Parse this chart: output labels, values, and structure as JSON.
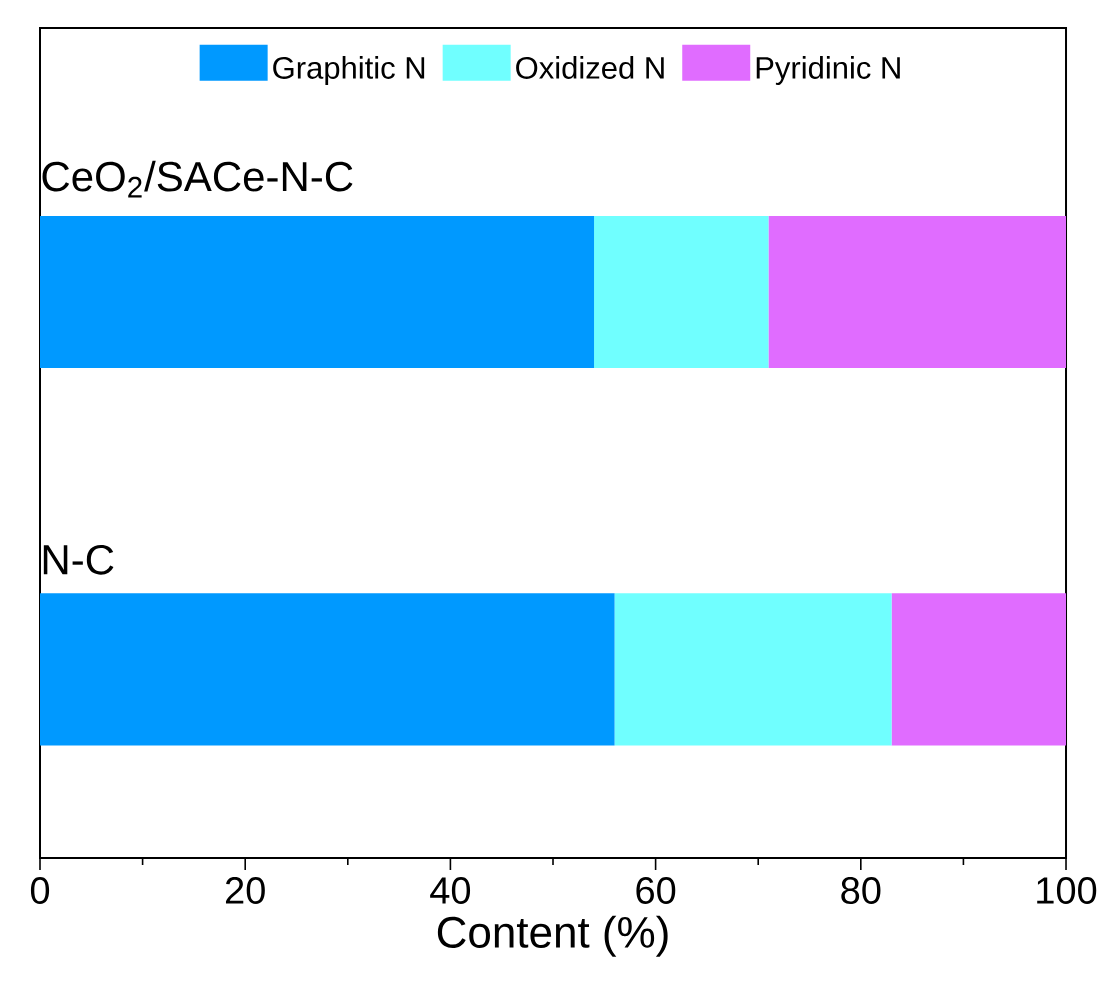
{
  "chart_data": {
    "type": "bar",
    "orientation": "horizontal",
    "stacked": true,
    "xlabel": "Content (%)",
    "categories": [
      "CeO$_{2}$/SACe-N-C",
      "N-C"
    ],
    "series": [
      {
        "name": "Graphitic N",
        "color": "#0099ff",
        "values": [
          54,
          56
        ]
      },
      {
        "name": "Oxidized N",
        "color": "#70ffff",
        "values": [
          17,
          27
        ]
      },
      {
        "name": "Pyridinic N",
        "color": "#e06cff",
        "values": [
          29,
          17
        ]
      }
    ],
    "xlim": [
      0,
      100
    ],
    "xticks": [
      0,
      {
        "value": 10,
        "label": null
      },
      20,
      {
        "value": 30,
        "label": null
      },
      40,
      {
        "value": 50,
        "label": null
      },
      60,
      {
        "value": 70,
        "label": null
      },
      80,
      {
        "value": 90,
        "label": null
      },
      100
    ],
    "legend": "top",
    "grid": false
  }
}
